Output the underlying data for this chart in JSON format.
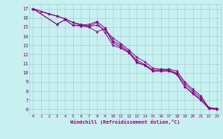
{
  "xlabel": "Windchill (Refroidissement éolien,°C)",
  "xlim": [
    -0.5,
    23.5
  ],
  "ylim": [
    5.5,
    17.5
  ],
  "xticks": [
    0,
    1,
    2,
    3,
    4,
    5,
    6,
    7,
    8,
    9,
    10,
    11,
    12,
    13,
    14,
    15,
    16,
    17,
    18,
    19,
    20,
    21,
    22,
    23
  ],
  "yticks": [
    6,
    7,
    8,
    9,
    10,
    11,
    12,
    13,
    14,
    15,
    16,
    17
  ],
  "background_color": "#c8f0f0",
  "grid_color": "#a0d0d0",
  "line_color": "#880088",
  "lines": [
    {
      "x": [
        0,
        1,
        2,
        3,
        4,
        5,
        6,
        7,
        8,
        9,
        10,
        11,
        12,
        13,
        14,
        15,
        16,
        17,
        18,
        19,
        20,
        21,
        22,
        23
      ],
      "y": [
        17,
        16.7,
        16.4,
        16.2,
        15.9,
        15.5,
        15.2,
        15.1,
        15.2,
        14.7,
        13.8,
        13.2,
        12.5,
        11.7,
        11.2,
        10.5,
        10.4,
        10.4,
        10.2,
        9.0,
        8.2,
        7.5,
        6.2,
        6.0
      ]
    },
    {
      "x": [
        0,
        3,
        4,
        5,
        6,
        7,
        8,
        9,
        10,
        11,
        12,
        13,
        14,
        15,
        16,
        17,
        18,
        19,
        20,
        21,
        22,
        23
      ],
      "y": [
        17,
        15.3,
        15.8,
        15.2,
        15.2,
        15.3,
        15.6,
        14.9,
        13.5,
        13.0,
        12.3,
        11.4,
        10.9,
        10.3,
        10.3,
        10.3,
        10.0,
        8.8,
        8.0,
        7.3,
        6.2,
        6.1
      ]
    },
    {
      "x": [
        0,
        3,
        4,
        5,
        6,
        7,
        8,
        9,
        10,
        11,
        12,
        13,
        14,
        15,
        16,
        17,
        18,
        19,
        20,
        21,
        22,
        23
      ],
      "y": [
        17,
        15.3,
        15.8,
        15.2,
        15.1,
        15.0,
        14.5,
        14.8,
        13.3,
        12.8,
        12.2,
        11.2,
        10.8,
        10.2,
        10.2,
        10.2,
        9.9,
        8.5,
        7.8,
        7.1,
        6.1,
        6.0
      ]
    },
    {
      "x": [
        0,
        3,
        4,
        5,
        6,
        7,
        8,
        9,
        10,
        11,
        12,
        13,
        14,
        15,
        16,
        17,
        18,
        19,
        20,
        21,
        22,
        23
      ],
      "y": [
        17,
        16.2,
        15.9,
        15.5,
        15.3,
        15.1,
        15.5,
        14.4,
        13.0,
        12.7,
        12.2,
        11.1,
        10.8,
        10.2,
        10.2,
        10.2,
        9.8,
        8.5,
        7.7,
        7.0,
        6.1,
        6.0
      ]
    }
  ]
}
